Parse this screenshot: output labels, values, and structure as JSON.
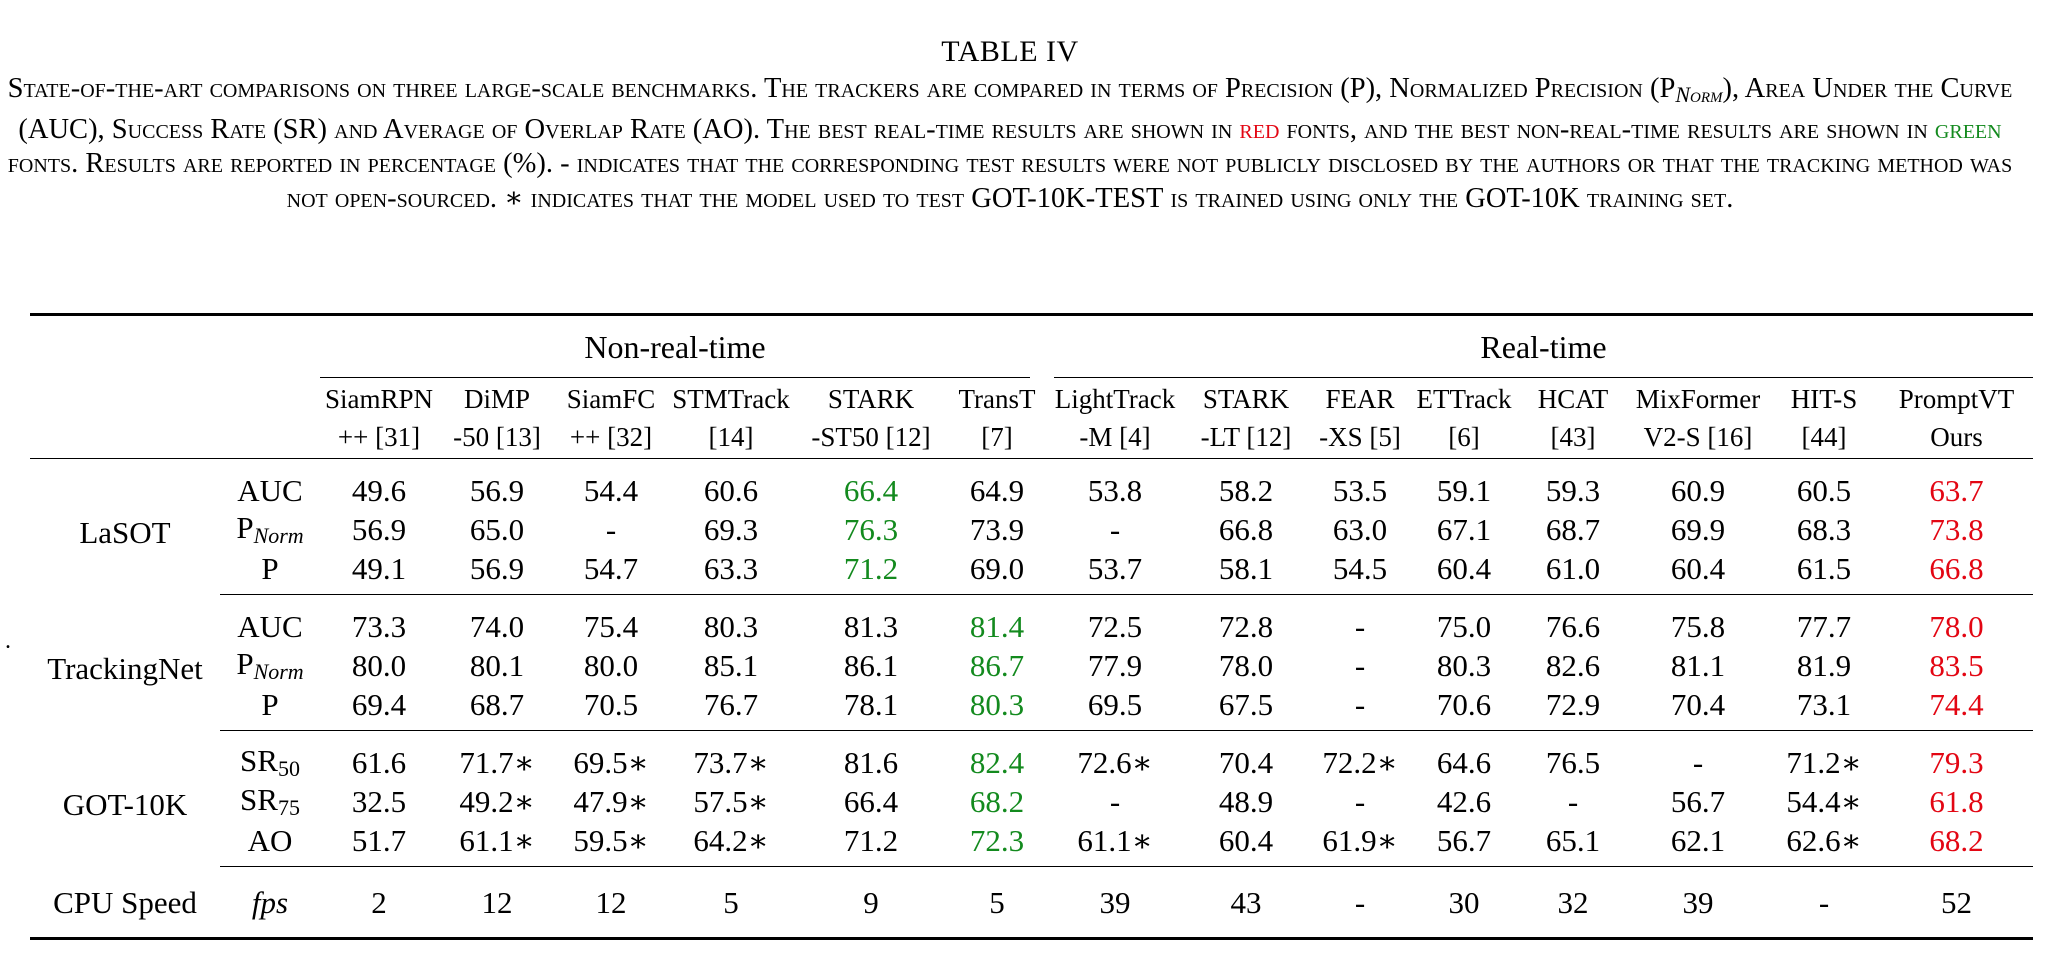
{
  "caption": {
    "title": "TABLE IV",
    "seg1": "State-of-the-art comparisons on three large-scale benchmarks. The trackers are compared in terms of Precision (P), Normalized Precision (P",
    "seg1_sub": "Norm",
    "seg2": "), Area Under the Curve (AUC), Success Rate (SR) and Average of Overlap Rate (AO). The best real-time results are shown in ",
    "red_word": "red",
    "seg3": " fonts, and the best non-real-time results are shown in ",
    "green_word": "green",
    "seg4": " fonts. Results are reported in percentage (%). - indicates that the corresponding test results were not publicly disclosed by the authors or that the tracking method was not open-sourced. ∗ indicates that the model used to test ",
    "got_test": "GOT-10K-TEST",
    "seg5": " is trained using only the ",
    "got_train": "GOT-10K",
    "seg6": " training set."
  },
  "colors": {
    "best_realtime": "#e30613",
    "best_nonrealtime": "#138a1e"
  },
  "groups": {
    "non_realtime": "Non-real-time",
    "realtime": "Real-time"
  },
  "trackers": [
    {
      "l1": "SiamRPN",
      "l2": "++ [31]"
    },
    {
      "l1": "DiMP",
      "l2": "-50 [13]"
    },
    {
      "l1": "SiamFC",
      "l2": "++ [32]"
    },
    {
      "l1": "STMTrack",
      "l2": "[14]"
    },
    {
      "l1": "STARK",
      "l2": "-ST50 [12]"
    },
    {
      "l1": "TransT",
      "l2": "[7]"
    },
    {
      "l1": "LightTrack",
      "l2": "-M [4]"
    },
    {
      "l1": "STARK",
      "l2": "-LT [12]"
    },
    {
      "l1": "FEAR",
      "l2": "-XS [5]"
    },
    {
      "l1": "ETTrack",
      "l2": "[6]"
    },
    {
      "l1": "HCAT",
      "l2": "[43]"
    },
    {
      "l1": "MixFormer",
      "l2": "V2-S [16]"
    },
    {
      "l1": "HIT-S",
      "l2": "[44]"
    },
    {
      "l1": "PromptVT",
      "l2": "Ours"
    }
  ],
  "datasets": {
    "lasot": "LaSOT",
    "trackingnet": "TrackingNet",
    "got10k": "GOT-10K",
    "cpu": "CPU Speed"
  },
  "metrics": {
    "auc": "AUC",
    "p_norm_base": "P",
    "p_norm_sub": "Norm",
    "p": "P",
    "sr_base": "SR",
    "sr50_sub": "50",
    "sr75_sub": "75",
    "ao": "AO",
    "fps": "fps"
  },
  "rows": {
    "lasot_auc": [
      "49.6",
      "56.9",
      "54.4",
      "60.6",
      "66.4",
      "64.9",
      "53.8",
      "58.2",
      "53.5",
      "59.1",
      "59.3",
      "60.9",
      "60.5",
      "63.7"
    ],
    "lasot_pnorm": [
      "56.9",
      "65.0",
      "-",
      "69.3",
      "76.3",
      "73.9",
      "-",
      "66.8",
      "63.0",
      "67.1",
      "68.7",
      "69.9",
      "68.3",
      "73.8"
    ],
    "lasot_p": [
      "49.1",
      "56.9",
      "54.7",
      "63.3",
      "71.2",
      "69.0",
      "53.7",
      "58.1",
      "54.5",
      "60.4",
      "61.0",
      "60.4",
      "61.5",
      "66.8"
    ],
    "tn_auc": [
      "73.3",
      "74.0",
      "75.4",
      "80.3",
      "81.3",
      "81.4",
      "72.5",
      "72.8",
      "-",
      "75.0",
      "76.6",
      "75.8",
      "77.7",
      "78.0"
    ],
    "tn_pnorm": [
      "80.0",
      "80.1",
      "80.0",
      "85.1",
      "86.1",
      "86.7",
      "77.9",
      "78.0",
      "-",
      "80.3",
      "82.6",
      "81.1",
      "81.9",
      "83.5"
    ],
    "tn_p": [
      "69.4",
      "68.7",
      "70.5",
      "76.7",
      "78.1",
      "80.3",
      "69.5",
      "67.5",
      "-",
      "70.6",
      "72.9",
      "70.4",
      "73.1",
      "74.4"
    ],
    "got_sr50": [
      "61.6",
      "71.7∗",
      "69.5∗",
      "73.7∗",
      "81.6",
      "82.4",
      "72.6∗",
      "70.4",
      "72.2∗",
      "64.6",
      "76.5",
      "-",
      "71.2∗",
      "79.3"
    ],
    "got_sr75": [
      "32.5",
      "49.2∗",
      "47.9∗",
      "57.5∗",
      "66.4",
      "68.2",
      "-",
      "48.9",
      "-",
      "42.6",
      "-",
      "56.7",
      "54.4∗",
      "61.8"
    ],
    "got_ao": [
      "51.7",
      "61.1∗",
      "59.5∗",
      "64.2∗",
      "71.2",
      "72.3",
      "61.1∗",
      "60.4",
      "61.9∗",
      "56.7",
      "65.1",
      "62.1",
      "62.6∗",
      "68.2"
    ],
    "cpu_fps": [
      "2",
      "12",
      "12",
      "5",
      "9",
      "5",
      "39",
      "43",
      "-",
      "30",
      "32",
      "39",
      "-",
      "52"
    ]
  },
  "best": {
    "lasot_auc": [
      4,
      13
    ],
    "lasot_pnorm": [
      4,
      13
    ],
    "lasot_p": [
      4,
      13
    ],
    "tn_auc": [
      5,
      13
    ],
    "tn_pnorm": [
      5,
      13
    ],
    "tn_p": [
      5,
      13
    ],
    "got_sr50": [
      5,
      13
    ],
    "got_sr75": [
      5,
      13
    ],
    "got_ao": [
      5,
      13
    ]
  },
  "margin_mark": "."
}
